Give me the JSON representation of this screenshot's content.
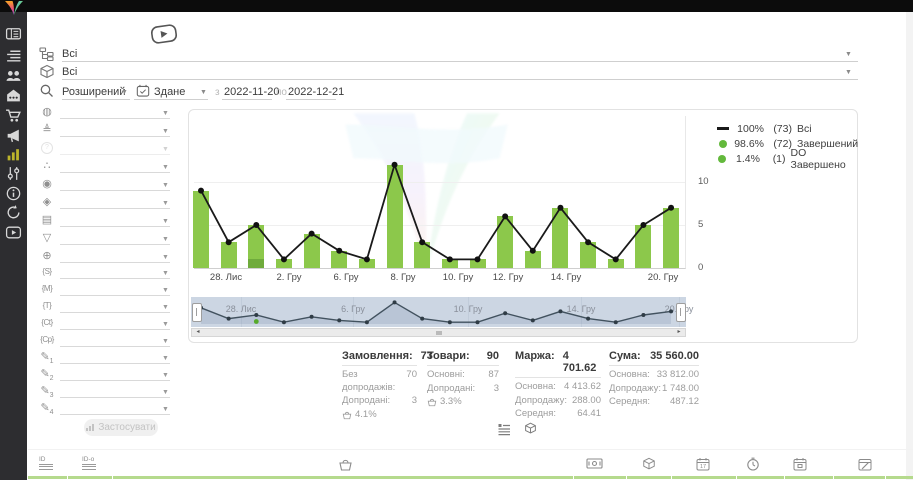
{
  "sidebar": {
    "items": [
      {
        "name": "dashboard"
      },
      {
        "name": "orders-list"
      },
      {
        "name": "customers"
      },
      {
        "name": "store"
      },
      {
        "name": "cart"
      },
      {
        "name": "marketing"
      },
      {
        "name": "analytics",
        "active": true
      },
      {
        "name": "settings"
      },
      {
        "name": "info"
      },
      {
        "name": "sync"
      },
      {
        "name": "video-guide"
      }
    ]
  },
  "header": {
    "status_filter_value": "Всі",
    "product_filter_value": "Всі",
    "search_mode": "Розширений",
    "date_field": "Здане",
    "from_label": "з",
    "date_from": "2022-11-20",
    "to_label": "по",
    "date_to": "2022-12-21"
  },
  "filter_panel": {
    "rows": [
      {
        "icon": "◍",
        "name": "source-filter"
      },
      {
        "icon": "≜",
        "name": "stage-filter"
      },
      {
        "icon": "?",
        "name": "unknown-filter",
        "disabled": true,
        "circle": true
      },
      {
        "icon": "∴",
        "name": "structure-filter"
      },
      {
        "icon": "◉",
        "name": "person-filter"
      },
      {
        "icon": "◈",
        "name": "product-filter"
      },
      {
        "icon": "▤",
        "name": "payment-filter"
      },
      {
        "icon": "▽",
        "name": "funnel-filter"
      },
      {
        "icon": "⊕",
        "name": "website-filter"
      },
      {
        "icon": "{S}",
        "name": "utm-source-filter",
        "small": true
      },
      {
        "icon": "{M}",
        "name": "utm-medium-filter",
        "small": true
      },
      {
        "icon": "{T}",
        "name": "utm-term-filter",
        "small": true
      },
      {
        "icon": "{Ct}",
        "name": "utm-content-filter",
        "small": true
      },
      {
        "icon": "{Cp}",
        "name": "utm-campaign-filter",
        "small": true
      },
      {
        "icon": "✎",
        "sub": "1",
        "name": "custom-field-1-filter"
      },
      {
        "icon": "✎",
        "sub": "2",
        "name": "custom-field-2-filter"
      },
      {
        "icon": "✎",
        "sub": "3",
        "name": "custom-field-3-filter"
      },
      {
        "icon": "✎",
        "sub": "4",
        "name": "custom-field-4-filter"
      }
    ],
    "apply_label": "Застосувати"
  },
  "chart_data": {
    "type": "bar+line",
    "ylim": [
      0,
      12.6
    ],
    "yticks": [
      0,
      5,
      10
    ],
    "series": [
      {
        "name": "Всі",
        "type": "line",
        "color": "#1a1a1a",
        "values": [
          9,
          3,
          5,
          1,
          4,
          2,
          1,
          12,
          3,
          1,
          1,
          6,
          2,
          7,
          3,
          1,
          5,
          7
        ]
      },
      {
        "name": "Завершений",
        "type": "bar",
        "color": "#8cc84b",
        "values": [
          9,
          3,
          4,
          1,
          4,
          2,
          1,
          12,
          3,
          1,
          1,
          6,
          2,
          7,
          3,
          1,
          5,
          7
        ]
      },
      {
        "name": "DO Завершено",
        "type": "bar",
        "color": "#6fab3c",
        "values": [
          0,
          0,
          1,
          0,
          0,
          0,
          0,
          0,
          0,
          0,
          0,
          0,
          0,
          0,
          0,
          0,
          0,
          0
        ]
      }
    ],
    "x_axis_labels": [
      {
        "text": "28. Лис",
        "x": 32
      },
      {
        "text": "2. Гру",
        "x": 95
      },
      {
        "text": "6. Гру",
        "x": 152
      },
      {
        "text": "8. Гру",
        "x": 209
      },
      {
        "text": "10. Гру",
        "x": 264
      },
      {
        "text": "12. Гру",
        "x": 314
      },
      {
        "text": "14. Гру",
        "x": 372
      },
      {
        "text": "20. Гру",
        "x": 469
      }
    ],
    "legend": [
      {
        "marker": "line",
        "color": "#1a1a1a",
        "pct": "100%",
        "count": "(73)",
        "label": "Всі"
      },
      {
        "marker": "dot",
        "color": "#63b93c",
        "pct": "98.6%",
        "count": "(72)",
        "label": "Завершений"
      },
      {
        "marker": "dot",
        "color": "#63b93c",
        "pct": "1.4%",
        "count": "(1)",
        "label": "DO Завершено"
      }
    ],
    "navigator": {
      "labels": [
        {
          "text": "28. Лис",
          "x": 50
        },
        {
          "text": "6. Гру",
          "x": 162
        },
        {
          "text": "10. Гру",
          "x": 277
        },
        {
          "text": "14. Гру",
          "x": 390
        },
        {
          "text": "20. Гру",
          "x": 488
        }
      ],
      "green_dot_index": 2,
      "green_dot_color": "#56aa2b"
    }
  },
  "stats": {
    "columns": [
      {
        "title": "Замовлення:",
        "value": "73",
        "rows": [
          {
            "label": "Без допродажів:",
            "value": "70"
          },
          {
            "label": "Допродані:",
            "value": "3"
          },
          {
            "label": "",
            "value": "4.1%",
            "icon": "basket"
          }
        ]
      },
      {
        "title": "Товари:",
        "value": "90",
        "rows": [
          {
            "label": "Основні:",
            "value": "87"
          },
          {
            "label": "Допродані:",
            "value": "3"
          },
          {
            "label": "",
            "value": "3.3%",
            "icon": "basket"
          }
        ]
      },
      {
        "title": "Маржа:",
        "value": "4 701.62",
        "rows": [
          {
            "label": "Основна:",
            "value": "4 413.62"
          },
          {
            "label": "Допродажу:",
            "value": "288.00"
          },
          {
            "label": "Середня:",
            "value": "64.41"
          }
        ]
      },
      {
        "title": "Сума:",
        "value": "35 560.00",
        "rows": [
          {
            "label": "Основна:",
            "value": "33 812.00"
          },
          {
            "label": "Допродажу:",
            "value": "1 748.00"
          },
          {
            "label": "Середня:",
            "value": "487.12"
          }
        ]
      }
    ]
  },
  "footer": {
    "id_label": "ID",
    "id_o_label": "ID-o"
  }
}
